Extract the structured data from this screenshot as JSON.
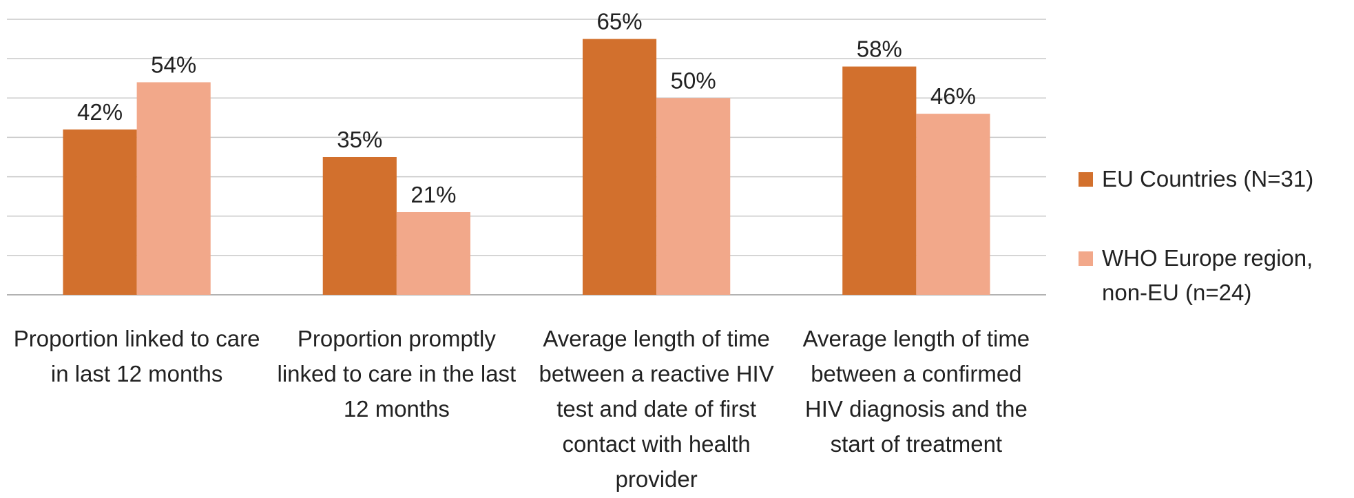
{
  "chart_data": {
    "type": "bar",
    "categories": [
      "Proportion linked to care in last 12 months",
      "Proportion promptly linked to care in the last 12 months",
      "Average length of time between a reactive HIV test and date of first contact with health provider",
      "Average length of time between a confirmed HIV diagnosis and the start of treatment"
    ],
    "series": [
      {
        "name": "EU Countries (N=31)",
        "color": "#d2702d",
        "values": [
          42,
          35,
          65,
          58
        ],
        "value_labels": [
          "42%",
          "35%",
          "65%",
          "58%"
        ]
      },
      {
        "name": "WHO Europe region, non-EU (n=24)",
        "color": "#f2a88a",
        "values": [
          54,
          21,
          50,
          46
        ],
        "value_labels": [
          "54%",
          "21%",
          "50%",
          "46%"
        ]
      }
    ],
    "ylim": [
      0,
      70
    ],
    "yticks": [
      0,
      10,
      20,
      30,
      40,
      50,
      60,
      70
    ],
    "grid": true,
    "legend": "right"
  }
}
